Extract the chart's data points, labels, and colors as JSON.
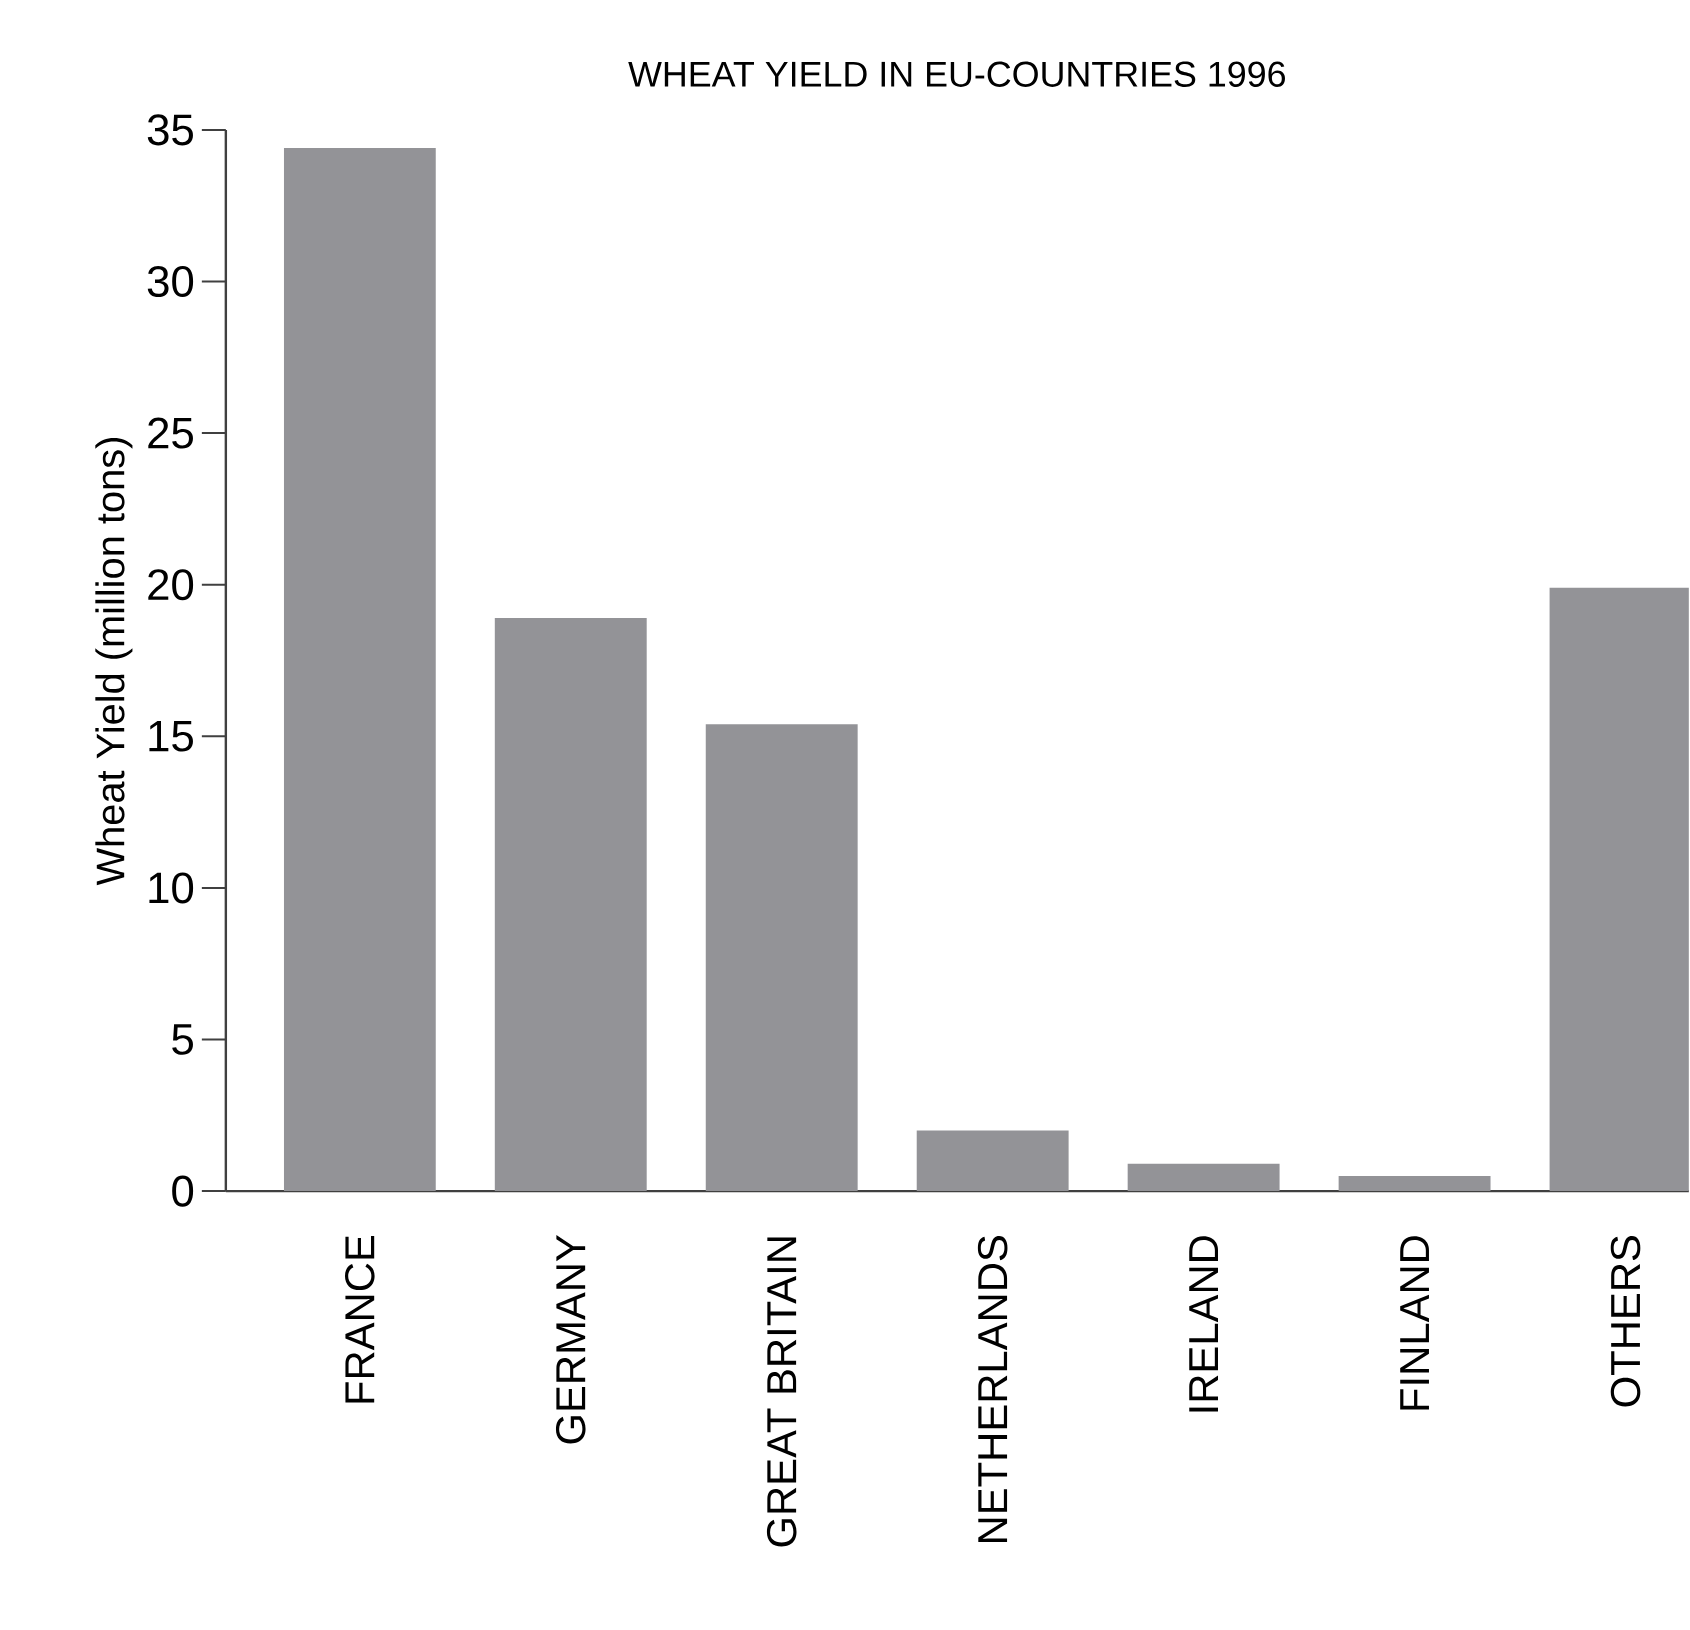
{
  "chart_data": {
    "type": "bar",
    "title": "WHEAT YIELD IN EU-COUNTRIES 1996",
    "ylabel": "Wheat Yield (million tons)",
    "categories": [
      "FRANCE",
      "GERMANY",
      "GREAT BRITAIN",
      "NETHERLANDS",
      "IRELAND",
      "FINLAND",
      "OTHERS"
    ],
    "values": [
      34.4,
      18.9,
      15.4,
      2.0,
      0.9,
      0.5,
      19.9
    ],
    "color": "#939397",
    "ylim": [
      0,
      35
    ],
    "yticks": [
      0,
      5,
      10,
      15,
      20,
      25,
      30,
      35
    ]
  }
}
